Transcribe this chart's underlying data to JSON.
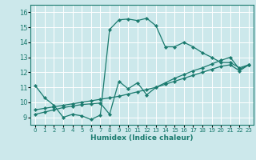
{
  "xlabel": "Humidex (Indice chaleur)",
  "bg_color": "#cce8eb",
  "grid_color": "#ffffff",
  "line_color": "#1a7a6e",
  "xlim": [
    -0.5,
    23.5
  ],
  "ylim": [
    8.5,
    16.5
  ],
  "xticks": [
    0,
    1,
    2,
    3,
    4,
    5,
    6,
    7,
    8,
    9,
    10,
    11,
    12,
    13,
    14,
    15,
    16,
    17,
    18,
    19,
    20,
    21,
    22,
    23
  ],
  "yticks": [
    9,
    10,
    11,
    12,
    13,
    14,
    15,
    16
  ],
  "series1_x": [
    0,
    1,
    2,
    3,
    4,
    5,
    6,
    7,
    8,
    9,
    10,
    11,
    12,
    13,
    14,
    15,
    16,
    17,
    18,
    19,
    20,
    21,
    22,
    23
  ],
  "series1_y": [
    11.1,
    10.3,
    9.8,
    9.0,
    9.2,
    9.1,
    8.85,
    9.15,
    14.85,
    15.5,
    15.55,
    15.45,
    15.6,
    15.1,
    13.7,
    13.7,
    14.0,
    13.7,
    13.3,
    13.0,
    12.65,
    12.65,
    12.3,
    12.5
  ],
  "series2_x": [
    0,
    1,
    2,
    3,
    4,
    5,
    6,
    7,
    8,
    9,
    10,
    11,
    12,
    13,
    14,
    15,
    16,
    17,
    18,
    19,
    20,
    21,
    22,
    23
  ],
  "series2_y": [
    9.5,
    9.6,
    9.7,
    9.8,
    9.9,
    10.0,
    10.1,
    10.2,
    10.3,
    10.4,
    10.55,
    10.7,
    10.85,
    11.0,
    11.2,
    11.4,
    11.6,
    11.8,
    12.0,
    12.2,
    12.4,
    12.5,
    12.1,
    12.5
  ],
  "series3_x": [
    0,
    1,
    2,
    3,
    4,
    5,
    6,
    7,
    8,
    9,
    10,
    11,
    12,
    13,
    14,
    15,
    16,
    17,
    18,
    19,
    20,
    21,
    22,
    23
  ],
  "series3_y": [
    9.2,
    9.35,
    9.5,
    9.65,
    9.75,
    9.85,
    9.9,
    9.95,
    9.2,
    11.4,
    10.9,
    11.3,
    10.5,
    11.0,
    11.3,
    11.6,
    11.85,
    12.1,
    12.3,
    12.55,
    12.8,
    13.0,
    12.2,
    12.5
  ]
}
